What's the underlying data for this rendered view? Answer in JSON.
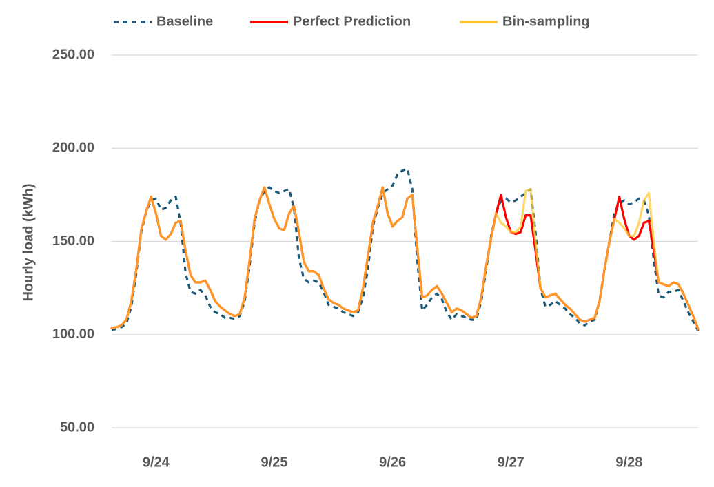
{
  "chart_data": {
    "type": "line",
    "y_label": "Hourly load (kWh)",
    "ylim": [
      50,
      250
    ],
    "yticks": [
      {
        "value": 50,
        "label": "50.00"
      },
      {
        "value": 100,
        "label": "100.00"
      },
      {
        "value": 150,
        "label": "150.00"
      },
      {
        "value": 200,
        "label": "200.00"
      },
      {
        "value": 250,
        "label": "250.00"
      }
    ],
    "grid": true,
    "legend": "top",
    "categories": [
      null,
      null,
      null,
      null,
      null,
      null,
      null,
      null,
      null,
      "9/24",
      null,
      null,
      null,
      null,
      null,
      null,
      null,
      null,
      null,
      null,
      null,
      null,
      null,
      null,
      null,
      null,
      null,
      null,
      null,
      null,
      null,
      null,
      null,
      "9/25",
      null,
      null,
      null,
      null,
      null,
      null,
      null,
      null,
      null,
      null,
      null,
      null,
      null,
      null,
      null,
      null,
      null,
      null,
      null,
      null,
      null,
      null,
      null,
      "9/26",
      null,
      null,
      null,
      null,
      null,
      null,
      null,
      null,
      null,
      null,
      null,
      null,
      null,
      null,
      null,
      null,
      null,
      null,
      null,
      null,
      null,
      null,
      null,
      "9/27",
      null,
      null,
      null,
      null,
      null,
      null,
      null,
      null,
      null,
      null,
      null,
      null,
      null,
      null,
      null,
      null,
      null,
      null,
      null,
      null,
      null,
      null,
      null,
      "9/28",
      null,
      null,
      null,
      null,
      null,
      null,
      null,
      null,
      null,
      null,
      null,
      null,
      null,
      null
    ],
    "series": [
      {
        "name": "Baseline",
        "color": "#1d5b79",
        "dashed": true,
        "values": [
          102.6,
          103,
          104,
          106,
          115,
          133,
          155,
          166,
          172,
          173,
          167,
          168,
          172,
          174,
          160,
          133,
          123,
          122,
          124,
          121,
          115,
          112,
          111,
          109,
          109,
          108.5,
          110,
          118,
          137,
          160,
          172,
          177,
          179,
          177,
          176,
          177,
          178,
          168,
          141,
          130,
          128,
          129,
          128,
          123,
          116,
          115,
          114,
          112,
          111,
          110,
          112,
          120,
          135,
          158,
          168,
          176,
          178,
          180,
          186,
          188,
          189,
          178,
          140,
          113,
          116,
          120,
          122,
          119,
          112,
          108,
          111,
          110,
          109,
          108,
          108,
          118,
          135,
          153,
          165,
          172,
          173,
          171,
          172,
          174,
          176,
          178,
          155,
          125,
          115,
          116,
          118,
          116,
          114,
          111,
          109,
          106,
          105,
          107,
          108,
          118,
          135,
          150,
          165,
          171,
          172,
          170,
          171,
          173,
          172,
          164,
          140,
          121,
          120,
          123,
          123,
          124,
          118,
          112,
          107,
          102
        ]
      },
      {
        "name": "Perfect Prediction",
        "color": "#ff0000",
        "values": [
          103.5,
          104,
          105,
          108,
          118,
          135,
          156,
          166,
          174,
          165,
          153,
          151,
          154,
          160,
          161,
          145,
          132,
          128,
          128,
          129,
          124,
          118,
          115,
          113,
          111,
          110,
          111,
          120,
          140,
          162,
          172,
          179,
          170,
          162,
          157,
          156,
          165,
          169,
          155,
          139,
          134,
          134,
          132,
          125,
          119,
          117,
          116,
          114,
          113,
          112,
          113,
          125,
          142,
          160,
          169,
          179,
          165,
          158,
          161,
          163,
          173,
          175,
          147,
          120,
          121,
          124,
          126,
          122,
          117,
          112,
          114,
          113,
          111,
          109,
          110,
          120,
          137,
          152,
          165,
          175,
          163,
          155,
          154,
          155,
          164,
          164,
          145,
          125,
          120,
          121,
          122,
          119,
          116,
          114,
          111,
          108,
          107,
          108,
          109,
          118,
          135,
          150,
          162,
          174,
          162,
          153,
          151,
          153,
          160,
          161,
          145,
          128,
          127,
          126,
          128,
          127,
          122,
          116,
          110,
          103
        ]
      },
      {
        "name": "Bin-sampling",
        "color": "#ffc832",
        "values": [
          103.5,
          104,
          105,
          108,
          118,
          135,
          156,
          166,
          174,
          165,
          153,
          151,
          154,
          160,
          161,
          145,
          132,
          128,
          128,
          129,
          124,
          118,
          115,
          113,
          111,
          110,
          111,
          120,
          140,
          162,
          172,
          179,
          170,
          162,
          157,
          156,
          165,
          169,
          155,
          139,
          134,
          134,
          132,
          125,
          119,
          117,
          116,
          114,
          113,
          112,
          113,
          125,
          142,
          160,
          169,
          179,
          165,
          158,
          161,
          163,
          173,
          175,
          147,
          120,
          121,
          124,
          126,
          122,
          117,
          112,
          114,
          113,
          111,
          109,
          110,
          120,
          137,
          152,
          165,
          160,
          158,
          155,
          155,
          158,
          177,
          178,
          150,
          125,
          120,
          121,
          122,
          119,
          116,
          114,
          111,
          108,
          107,
          108,
          109,
          118,
          135,
          150,
          162,
          160,
          157,
          153,
          153,
          160,
          172,
          176,
          150,
          128,
          127,
          126,
          128,
          127,
          122,
          116,
          110,
          103
        ]
      }
    ]
  }
}
